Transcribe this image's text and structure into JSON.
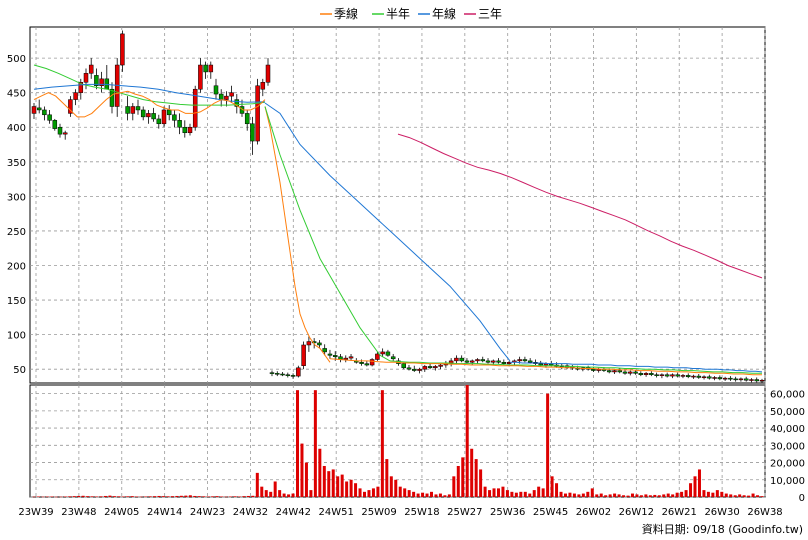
{
  "chart_data": {
    "type": "candlestick",
    "legend": [
      {
        "name": "季線",
        "color": "#ff7f0e"
      },
      {
        "name": "半年",
        "color": "#33cc33"
      },
      {
        "name": "年線",
        "color": "#1f77d4"
      },
      {
        "name": "三年",
        "color": "#cc1f66"
      }
    ],
    "x_ticks": [
      "23W39",
      "23W48",
      "24W05",
      "24W14",
      "24W23",
      "24W32",
      "24W42",
      "24W51",
      "25W09",
      "25W18",
      "25W27",
      "25W36",
      "25W45",
      "26W02",
      "26W12",
      "26W21",
      "26W30",
      "26W38"
    ],
    "price_axis": {
      "ticks": [
        50,
        100,
        150,
        200,
        250,
        300,
        350,
        400,
        450,
        500
      ],
      "ylim": [
        30,
        545
      ]
    },
    "volume_axis": {
      "ticks": [
        "0",
        "10,000",
        "20,000",
        "30,000",
        "40,000",
        "50,000",
        "60,000"
      ],
      "ylim": [
        0,
        65000
      ]
    },
    "candles_first": [
      [
        420,
        435,
        412,
        430
      ],
      [
        428,
        440,
        420,
        425
      ],
      [
        425,
        430,
        410,
        418
      ],
      [
        418,
        425,
        405,
        410
      ],
      [
        410,
        412,
        395,
        398
      ],
      [
        400,
        405,
        385,
        390
      ],
      [
        390,
        395,
        382,
        392
      ],
      [
        420,
        445,
        415,
        440
      ],
      [
        440,
        455,
        432,
        450
      ],
      [
        450,
        470,
        440,
        465
      ],
      [
        465,
        485,
        455,
        478
      ],
      [
        478,
        500,
        470,
        490
      ],
      [
        475,
        485,
        455,
        460
      ],
      [
        460,
        480,
        450,
        470
      ],
      [
        470,
        490,
        462,
        455
      ],
      [
        455,
        465,
        420,
        430
      ],
      [
        430,
        500,
        415,
        490
      ],
      [
        490,
        540,
        480,
        535
      ],
      [
        430,
        445,
        410,
        420
      ],
      [
        420,
        435,
        410,
        430
      ],
      [
        430,
        440,
        418,
        425
      ],
      [
        425,
        430,
        410,
        415
      ],
      [
        415,
        425,
        405,
        420
      ],
      [
        420,
        428,
        408,
        412
      ],
      [
        412,
        418,
        398,
        405
      ],
      [
        405,
        430,
        400,
        425
      ],
      [
        425,
        432,
        410,
        418
      ],
      [
        418,
        425,
        400,
        410
      ],
      [
        410,
        420,
        390,
        400
      ],
      [
        400,
        410,
        385,
        392
      ],
      [
        392,
        405,
        388,
        400
      ],
      [
        400,
        460,
        395,
        455
      ],
      [
        455,
        500,
        450,
        490
      ],
      [
        490,
        495,
        470,
        480
      ],
      [
        480,
        495,
        470,
        490
      ],
      [
        460,
        470,
        440,
        448
      ],
      [
        448,
        455,
        430,
        440
      ],
      [
        440,
        452,
        430,
        445
      ],
      [
        445,
        460,
        435,
        450
      ],
      [
        440,
        448,
        420,
        430
      ],
      [
        430,
        440,
        415,
        420
      ],
      [
        420,
        425,
        395,
        405
      ],
      [
        405,
        415,
        360,
        380
      ],
      [
        380,
        470,
        375,
        460
      ],
      [
        455,
        470,
        445,
        465
      ],
      [
        465,
        500,
        460,
        490
      ]
    ],
    "candles_second": [
      [
        45,
        48,
        40,
        44
      ],
      [
        44,
        47,
        40,
        43
      ],
      [
        43,
        46,
        40,
        42
      ],
      [
        42,
        45,
        38,
        41
      ],
      [
        41,
        44,
        36,
        40
      ],
      [
        40,
        55,
        38,
        52
      ],
      [
        55,
        90,
        50,
        85
      ],
      [
        85,
        98,
        75,
        90
      ],
      [
        90,
        95,
        80,
        88
      ],
      [
        88,
        92,
        80,
        85
      ],
      [
        80,
        86,
        70,
        75
      ],
      [
        72,
        78,
        65,
        70
      ],
      [
        70,
        76,
        62,
        68
      ],
      [
        68,
        72,
        60,
        64
      ],
      [
        64,
        70,
        60,
        66
      ],
      [
        66,
        72,
        62,
        68
      ],
      [
        62,
        66,
        58,
        60
      ],
      [
        60,
        64,
        55,
        58
      ],
      [
        58,
        62,
        54,
        56
      ],
      [
        56,
        66,
        54,
        64
      ],
      [
        64,
        75,
        62,
        72
      ],
      [
        72,
        80,
        68,
        75
      ],
      [
        75,
        78,
        68,
        70
      ],
      [
        68,
        72,
        62,
        65
      ],
      [
        62,
        66,
        55,
        58
      ],
      [
        58,
        60,
        50,
        52
      ],
      [
        52,
        56,
        48,
        50
      ],
      [
        50,
        55,
        46,
        48
      ],
      [
        48,
        52,
        44,
        50
      ],
      [
        50,
        56,
        46,
        54
      ],
      [
        54,
        58,
        50,
        52
      ],
      [
        52,
        56,
        48,
        54
      ],
      [
        54,
        58,
        50,
        56
      ],
      [
        56,
        62,
        52,
        58
      ],
      [
        58,
        66,
        54,
        62
      ],
      [
        62,
        70,
        58,
        66
      ],
      [
        66,
        70,
        60,
        62
      ],
      [
        62,
        66,
        58,
        60
      ],
      [
        60,
        64,
        56,
        62
      ],
      [
        62,
        66,
        58,
        64
      ],
      [
        64,
        68,
        60,
        62
      ],
      [
        62,
        66,
        58,
        60
      ],
      [
        60,
        64,
        56,
        62
      ],
      [
        62,
        66,
        58,
        60
      ],
      [
        60,
        64,
        56,
        58
      ],
      [
        58,
        62,
        54,
        60
      ],
      [
        60,
        64,
        56,
        62
      ],
      [
        62,
        68,
        58,
        64
      ],
      [
        64,
        68,
        60,
        62
      ],
      [
        62,
        66,
        58,
        60
      ],
      [
        60,
        64,
        56,
        58
      ],
      [
        58,
        62,
        54,
        56
      ],
      [
        56,
        60,
        52,
        58
      ],
      [
        58,
        62,
        54,
        56
      ],
      [
        56,
        60,
        52,
        54
      ],
      [
        54,
        58,
        50,
        55
      ],
      [
        55,
        58,
        50,
        53
      ],
      [
        53,
        56,
        49,
        52
      ],
      [
        52,
        55,
        48,
        50
      ],
      [
        50,
        54,
        47,
        52
      ],
      [
        52,
        55,
        48,
        50
      ],
      [
        50,
        53,
        46,
        48
      ],
      [
        48,
        52,
        45,
        50
      ],
      [
        50,
        53,
        46,
        48
      ],
      [
        48,
        51,
        44,
        46
      ],
      [
        46,
        50,
        43,
        48
      ],
      [
        48,
        51,
        44,
        46
      ],
      [
        46,
        49,
        42,
        44
      ],
      [
        44,
        48,
        41,
        46
      ],
      [
        46,
        49,
        42,
        44
      ],
      [
        44,
        47,
        40,
        42
      ],
      [
        42,
        46,
        39,
        44
      ],
      [
        44,
        47,
        40,
        42
      ],
      [
        42,
        45,
        38,
        41
      ],
      [
        41,
        44,
        37,
        42
      ],
      [
        42,
        45,
        38,
        40
      ],
      [
        40,
        44,
        37,
        42
      ],
      [
        42,
        45,
        38,
        40
      ],
      [
        40,
        43,
        37,
        41
      ],
      [
        41,
        44,
        37,
        39
      ],
      [
        39,
        42,
        36,
        40
      ],
      [
        40,
        43,
        36,
        38
      ],
      [
        38,
        41,
        35,
        39
      ],
      [
        39,
        42,
        35,
        37
      ],
      [
        37,
        40,
        34,
        38
      ],
      [
        38,
        41,
        34,
        36
      ],
      [
        36,
        39,
        33,
        37
      ],
      [
        37,
        40,
        33,
        36
      ],
      [
        36,
        39,
        32,
        35
      ],
      [
        35,
        38,
        32,
        36
      ],
      [
        36,
        39,
        32,
        34
      ],
      [
        34,
        37,
        31,
        35
      ],
      [
        35,
        38,
        31,
        33
      ],
      [
        33,
        36,
        30,
        34
      ]
    ],
    "ma_quarter_first": [
      440,
      445,
      450,
      445,
      435,
      425,
      415,
      415,
      420,
      430,
      440,
      448,
      450,
      452,
      448,
      445,
      440,
      432,
      428,
      425,
      425,
      420,
      420,
      422,
      428,
      435,
      440,
      438,
      432,
      425,
      425,
      430,
      440
    ],
    "ma_halfyear_first": [
      490,
      485,
      478,
      470,
      462,
      458,
      455,
      450,
      445,
      440,
      437,
      435,
      433,
      432,
      432,
      432,
      432,
      433,
      434,
      436
    ],
    "ma_year_first": [
      455,
      458,
      460,
      462,
      462,
      460,
      458,
      455,
      450,
      446,
      442,
      438,
      436,
      437
    ],
    "ma_quarter_drop": [
      [
        265,
        430
      ],
      [
        270,
        400
      ],
      [
        275,
        360
      ],
      [
        280,
        320
      ],
      [
        285,
        270
      ],
      [
        290,
        220
      ],
      [
        295,
        170
      ],
      [
        300,
        130
      ],
      [
        305,
        110
      ],
      [
        310,
        95
      ],
      [
        315,
        85
      ],
      [
        320,
        80
      ],
      [
        325,
        70
      ],
      [
        330,
        60
      ]
    ],
    "ma_halfyear_drop": [
      [
        265,
        430
      ],
      [
        280,
        360
      ],
      [
        300,
        280
      ],
      [
        320,
        210
      ],
      [
        340,
        160
      ],
      [
        360,
        110
      ],
      [
        380,
        70
      ],
      [
        390,
        62
      ]
    ],
    "ma_year_drop": [
      [
        265,
        435
      ],
      [
        280,
        420
      ],
      [
        300,
        375
      ],
      [
        330,
        330
      ],
      [
        360,
        290
      ],
      [
        390,
        250
      ],
      [
        420,
        210
      ],
      [
        450,
        170
      ],
      [
        480,
        120
      ],
      [
        500,
        80
      ],
      [
        510,
        62
      ]
    ],
    "ma_quarter_second": [
      65,
      64,
      63,
      62,
      62,
      61,
      60,
      60,
      59,
      59,
      58,
      58,
      58,
      57,
      57,
      56,
      56,
      56,
      55,
      55,
      55,
      54,
      54,
      53,
      53,
      52,
      52,
      51,
      51,
      50,
      50,
      49,
      49,
      48,
      48,
      47,
      47,
      46,
      46,
      45,
      45,
      44,
      44,
      43,
      43,
      42,
      42
    ],
    "ma_halfyear_second": [
      62,
      61,
      60,
      60,
      59,
      59,
      59,
      58,
      58,
      58,
      57,
      57,
      56,
      56,
      56,
      55,
      55,
      55,
      54,
      54,
      53,
      53,
      52,
      52,
      51,
      51,
      50,
      50,
      49,
      49,
      48,
      48,
      47,
      46,
      46,
      45,
      45,
      44,
      44
    ],
    "ma_year_second": [
      60,
      60,
      59,
      59,
      59,
      59,
      58,
      58,
      58,
      58,
      57,
      57,
      57,
      57,
      56,
      56,
      56,
      55,
      55,
      55,
      54,
      54,
      54,
      53,
      53,
      53,
      52,
      52,
      52,
      51,
      51,
      50,
      50,
      50,
      49,
      49,
      48,
      48,
      47,
      47,
      46
    ],
    "ma_threeyear": [
      390,
      385,
      378,
      370,
      362,
      355,
      348,
      342,
      338,
      333,
      327,
      320,
      313,
      306,
      300,
      295,
      290,
      284,
      278,
      272,
      266,
      258,
      250,
      243,
      235,
      228,
      222,
      215,
      208,
      200,
      194,
      188,
      182
    ],
    "volume": [
      200,
      300,
      200,
      250,
      300,
      150,
      200,
      300,
      400,
      500,
      600,
      700,
      500,
      400,
      300,
      400,
      600,
      800,
      500,
      400,
      300,
      400,
      500,
      300,
      200,
      300,
      400,
      500,
      600,
      500,
      400,
      500,
      600,
      700,
      800,
      1000,
      600,
      500,
      400,
      300,
      400,
      500,
      300,
      200,
      300,
      400,
      300,
      500,
      600,
      700,
      14000,
      6000,
      4000,
      3000,
      9000,
      4000,
      2000,
      1500,
      2000,
      62000,
      31000,
      20000,
      4000,
      62000,
      28000,
      18000,
      15000,
      16000,
      12000,
      13000,
      9000,
      10000,
      8000,
      5000,
      3000,
      4000,
      5000,
      6000,
      62000,
      22000,
      12000,
      10000,
      6000,
      5000,
      4000,
      3000,
      2000,
      2500,
      2000,
      3000,
      1500,
      2000,
      1000,
      1500,
      12000,
      18000,
      23000,
      65000,
      28000,
      22000,
      16000,
      6000,
      4000,
      5000,
      5000,
      6000,
      4000,
      3000,
      2500,
      3000,
      3000,
      2000,
      4000,
      6000,
      5000,
      60000,
      12000,
      8000,
      3000,
      2000,
      2500,
      2000,
      1500,
      2000,
      3000,
      5000,
      1500,
      2000,
      1000,
      1500,
      2000,
      1500,
      1000,
      800,
      2000,
      1500,
      1000,
      1500,
      1000,
      1200,
      1000,
      1500,
      2000,
      1500,
      2500,
      3000,
      4000,
      8000,
      12000,
      16000,
      4000,
      3000,
      2500,
      4000,
      3000,
      2000,
      1500,
      1000,
      1500,
      1000,
      800,
      2000,
      1000,
      500
    ]
  },
  "footer": {
    "source": "資料日期: 09/18  (Goodinfo.tw)"
  }
}
